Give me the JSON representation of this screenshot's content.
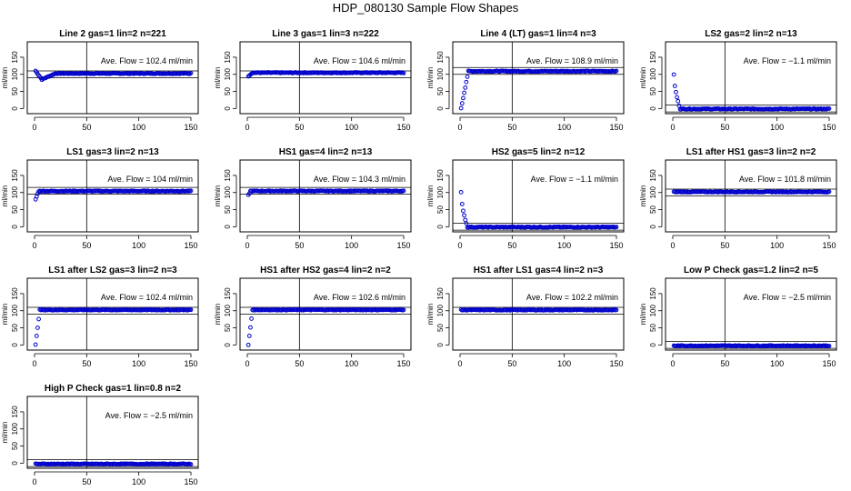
{
  "title": "HDP_080130  Sample Flow Shapes",
  "colors": {
    "points": "#0000cc",
    "axis": "#000000",
    "background": "#ffffff"
  },
  "chart_data": [
    {
      "type": "scatter",
      "title": "Line 2 gas=1 lin=2 n=221",
      "annotation": "Ave. Flow =  102.4  ml/min",
      "ylabel": "ml/min",
      "xlim": [
        0,
        150
      ],
      "ylim": [
        -15,
        195
      ],
      "xticks": [
        0,
        50,
        100,
        150
      ],
      "yticks": [
        0,
        50,
        100,
        150
      ],
      "ref_lines": [
        90,
        110
      ],
      "x_marker": 50,
      "shape": {
        "kind": "dip",
        "final": 102.4,
        "start": 110,
        "low": 85,
        "low_at": 7,
        "recover_at": 20
      }
    },
    {
      "type": "scatter",
      "title": "Line 3 gas=1 lin=3 n=222",
      "annotation": "Ave. Flow =  104.6  ml/min",
      "ylabel": "ml/min",
      "xlim": [
        0,
        150
      ],
      "ylim": [
        -15,
        195
      ],
      "xticks": [
        0,
        50,
        100,
        150
      ],
      "yticks": [
        0,
        50,
        100,
        150
      ],
      "ref_lines": [
        90,
        110
      ],
      "x_marker": 50,
      "shape": {
        "kind": "rise",
        "final": 104.6,
        "start": 95,
        "rise_end": 5
      }
    },
    {
      "type": "scatter",
      "title": "Line 4 (LT) gas=1 lin=4 n=3",
      "annotation": "Ave. Flow =  108.9  ml/min",
      "ylabel": "ml/min",
      "xlim": [
        0,
        150
      ],
      "ylim": [
        -15,
        195
      ],
      "xticks": [
        0,
        50,
        100,
        150
      ],
      "yticks": [
        0,
        50,
        100,
        150
      ],
      "ref_lines": [
        100,
        120
      ],
      "x_marker": 50,
      "shape": {
        "kind": "rise",
        "final": 108.9,
        "start": 0,
        "rise_end": 8
      }
    },
    {
      "type": "scatter",
      "title": "LS2 gas=2 lin=2 n=13",
      "annotation": "Ave. Flow =  −1.1  ml/min",
      "ylabel": "ml/min",
      "xlim": [
        0,
        150
      ],
      "ylim": [
        -15,
        195
      ],
      "xticks": [
        0,
        50,
        100,
        150
      ],
      "yticks": [
        0,
        50,
        100,
        150
      ],
      "ref_lines": [
        -10,
        10
      ],
      "x_marker": 50,
      "shape": {
        "kind": "fall",
        "final": -1.1,
        "start": 100,
        "fall_end": 7
      }
    },
    {
      "type": "scatter",
      "title": "LS1 gas=3 lin=2 n=13",
      "annotation": "Ave. Flow =  104  ml/min",
      "ylabel": "ml/min",
      "xlim": [
        0,
        150
      ],
      "ylim": [
        -15,
        195
      ],
      "xticks": [
        0,
        50,
        100,
        150
      ],
      "yticks": [
        0,
        50,
        100,
        150
      ],
      "ref_lines": [
        95,
        115
      ],
      "x_marker": 50,
      "shape": {
        "kind": "rise",
        "final": 104,
        "start": 80,
        "rise_end": 4
      }
    },
    {
      "type": "scatter",
      "title": "HS1 gas=4 lin=2 n=13",
      "annotation": "Ave. Flow =  104.3  ml/min",
      "ylabel": "ml/min",
      "xlim": [
        0,
        150
      ],
      "ylim": [
        -15,
        195
      ],
      "xticks": [
        0,
        50,
        100,
        150
      ],
      "yticks": [
        0,
        50,
        100,
        150
      ],
      "ref_lines": [
        95,
        115
      ],
      "x_marker": 50,
      "shape": {
        "kind": "rise",
        "final": 104.3,
        "start": 92,
        "rise_end": 3
      }
    },
    {
      "type": "scatter",
      "title": "HS2 gas=5 lin=2 n=12",
      "annotation": "Ave. Flow =  −1.1  ml/min",
      "ylabel": "ml/min",
      "xlim": [
        0,
        150
      ],
      "ylim": [
        -15,
        195
      ],
      "xticks": [
        0,
        50,
        100,
        150
      ],
      "yticks": [
        0,
        50,
        100,
        150
      ],
      "ref_lines": [
        -10,
        10
      ],
      "x_marker": 50,
      "shape": {
        "kind": "fall",
        "final": -1.1,
        "start": 100,
        "fall_end": 7
      }
    },
    {
      "type": "scatter",
      "title": "LS1 after HS1 gas=3 lin=2 n=2",
      "annotation": "Ave. Flow =  101.8  ml/min",
      "ylabel": "ml/min",
      "xlim": [
        0,
        150
      ],
      "ylim": [
        -15,
        195
      ],
      "xticks": [
        0,
        50,
        100,
        150
      ],
      "yticks": [
        0,
        50,
        100,
        150
      ],
      "ref_lines": [
        90,
        110
      ],
      "x_marker": 50,
      "shape": {
        "kind": "flat",
        "final": 101.8
      }
    },
    {
      "type": "scatter",
      "title": "LS1 after LS2 gas=3 lin=2 n=3",
      "annotation": "Ave. Flow =  102.4  ml/min",
      "ylabel": "ml/min",
      "xlim": [
        0,
        150
      ],
      "ylim": [
        -15,
        195
      ],
      "xticks": [
        0,
        50,
        100,
        150
      ],
      "yticks": [
        0,
        50,
        100,
        150
      ],
      "ref_lines": [
        90,
        110
      ],
      "x_marker": 50,
      "shape": {
        "kind": "rise",
        "final": 102.4,
        "start": 0,
        "rise_end": 5
      }
    },
    {
      "type": "scatter",
      "title": "HS1 after HS2 gas=4 lin=2 n=2",
      "annotation": "Ave. Flow =  102.6  ml/min",
      "ylabel": "ml/min",
      "xlim": [
        0,
        150
      ],
      "ylim": [
        -15,
        195
      ],
      "xticks": [
        0,
        50,
        100,
        150
      ],
      "yticks": [
        0,
        50,
        100,
        150
      ],
      "ref_lines": [
        90,
        110
      ],
      "x_marker": 50,
      "shape": {
        "kind": "rise",
        "final": 102.6,
        "start": 0,
        "rise_end": 5
      }
    },
    {
      "type": "scatter",
      "title": "HS1 after LS1 gas=4 lin=2 n=3",
      "annotation": "Ave. Flow =  102.2  ml/min",
      "ylabel": "ml/min",
      "xlim": [
        0,
        150
      ],
      "ylim": [
        -15,
        195
      ],
      "xticks": [
        0,
        50,
        100,
        150
      ],
      "yticks": [
        0,
        50,
        100,
        150
      ],
      "ref_lines": [
        90,
        110
      ],
      "x_marker": 50,
      "shape": {
        "kind": "flat",
        "final": 102.2
      }
    },
    {
      "type": "scatter",
      "title": "Low P Check gas=1.2 lin=2 n=5",
      "annotation": "Ave. Flow =  −2.5  ml/min",
      "ylabel": "ml/min",
      "xlim": [
        0,
        150
      ],
      "ylim": [
        -15,
        195
      ],
      "xticks": [
        0,
        50,
        100,
        150
      ],
      "yticks": [
        0,
        50,
        100,
        150
      ],
      "ref_lines": [
        -10,
        10
      ],
      "x_marker": 50,
      "shape": {
        "kind": "flat",
        "final": -2.5
      }
    },
    {
      "type": "scatter",
      "title": "High P Check gas=1 lin=0.8 n=2",
      "annotation": "Ave. Flow =  −2.5  ml/min",
      "ylabel": "ml/min",
      "xlim": [
        0,
        150
      ],
      "ylim": [
        -15,
        195
      ],
      "xticks": [
        0,
        50,
        100,
        150
      ],
      "yticks": [
        0,
        50,
        100,
        150
      ],
      "ref_lines": [
        -10,
        10
      ],
      "x_marker": 50,
      "shape": {
        "kind": "flat",
        "final": -2.5
      }
    }
  ]
}
